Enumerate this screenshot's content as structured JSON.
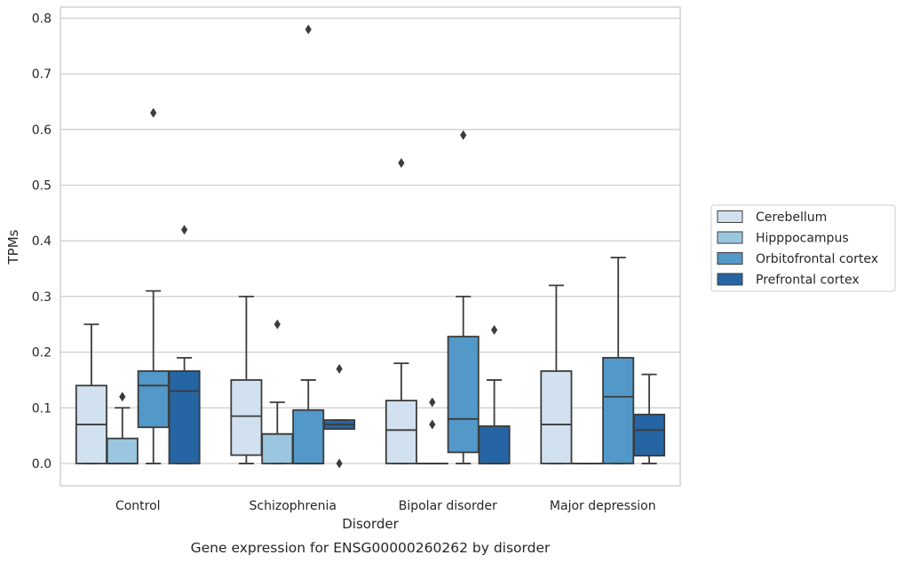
{
  "chart_data": {
    "type": "box",
    "title": "",
    "caption": "Gene expression for ENSG00000260262 by disorder",
    "xlabel": "Disorder",
    "ylabel": "TPMs",
    "ylim": [
      -0.04,
      0.82
    ],
    "yticks": [
      "0.0",
      "0.1",
      "0.2",
      "0.3",
      "0.4",
      "0.5",
      "0.6",
      "0.7",
      "0.8"
    ],
    "grid": "horizontal",
    "legend_position": "right",
    "categories": [
      "Control",
      "Schizophrenia",
      "Bipolar disorder",
      "Major depression"
    ],
    "series": [
      {
        "name": "Cerebellum",
        "color": "#d1e1ef",
        "boxes": [
          {
            "whislo": 0,
            "q1": 0,
            "med": 0.07,
            "q3": 0.14,
            "whishi": 0.25,
            "fliers": []
          },
          {
            "whislo": 0,
            "q1": 0.015,
            "med": 0.085,
            "q3": 0.15,
            "whishi": 0.3,
            "fliers": []
          },
          {
            "whislo": 0,
            "q1": 0,
            "med": 0.06,
            "q3": 0.113,
            "whishi": 0.18,
            "fliers": [
              0.54
            ]
          },
          {
            "whislo": 0,
            "q1": 0,
            "med": 0.07,
            "q3": 0.166,
            "whishi": 0.32,
            "fliers": []
          }
        ]
      },
      {
        "name": "Hipppocampus",
        "color": "#9ac7df",
        "boxes": [
          {
            "whislo": 0,
            "q1": 0,
            "med": 0,
            "q3": 0.045,
            "whishi": 0.1,
            "fliers": [
              0.12
            ]
          },
          {
            "whislo": 0,
            "q1": 0,
            "med": 0.053,
            "q3": 0.053,
            "whishi": 0.11,
            "fliers": [
              0.25
            ]
          },
          {
            "whislo": 0,
            "q1": 0,
            "med": 0,
            "q3": 0,
            "whishi": 0,
            "fliers": [
              0.07,
              0.11
            ]
          },
          {
            "whislo": 0,
            "q1": 0,
            "med": 0,
            "q3": 0,
            "whishi": 0,
            "fliers": []
          }
        ]
      },
      {
        "name": "Orbitofrontal cortex",
        "color": "#5298c8",
        "boxes": [
          {
            "whislo": 0,
            "q1": 0.065,
            "med": 0.14,
            "q3": 0.166,
            "whishi": 0.31,
            "fliers": [
              0.63
            ]
          },
          {
            "whislo": 0,
            "q1": 0,
            "med": 0,
            "q3": 0.096,
            "whishi": 0.15,
            "fliers": [
              0.78
            ]
          },
          {
            "whislo": 0,
            "q1": 0.02,
            "med": 0.08,
            "q3": 0.228,
            "whishi": 0.3,
            "fliers": [
              0.59
            ]
          },
          {
            "whislo": 0,
            "q1": 0,
            "med": 0.12,
            "q3": 0.19,
            "whishi": 0.37,
            "fliers": []
          }
        ]
      },
      {
        "name": "Prefrontal cortex",
        "color": "#2665a4",
        "boxes": [
          {
            "whislo": 0,
            "q1": 0,
            "med": 0.13,
            "q3": 0.166,
            "whishi": 0.19,
            "fliers": [
              0.42
            ]
          },
          {
            "whislo": 0.062,
            "q1": 0.062,
            "med": 0.07,
            "q3": 0.078,
            "whishi": 0.078,
            "fliers": [
              0.17,
              0
            ]
          },
          {
            "whislo": 0,
            "q1": 0,
            "med": 0,
            "q3": 0.067,
            "whishi": 0.15,
            "fliers": [
              0.24
            ]
          },
          {
            "whislo": 0,
            "q1": 0.014,
            "med": 0.06,
            "q3": 0.088,
            "whishi": 0.16,
            "fliers": []
          }
        ]
      }
    ]
  }
}
